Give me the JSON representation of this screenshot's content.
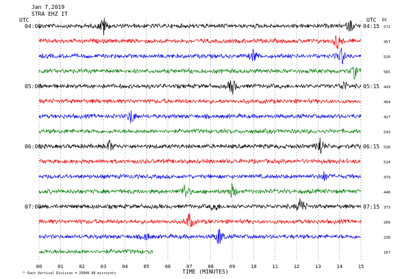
{
  "header": {
    "date": "Jan 7,2019",
    "station": "STRA EHZ IT"
  },
  "left_axis_label": "UTC",
  "right_axis_label": "UTC",
  "dc_label": "DC",
  "x_axis_title": "TIME (MINUTES)",
  "footnote": "Each Vertical Division = 25000.00 microcnts",
  "colors": {
    "black": "#000000",
    "red": "#ee0000",
    "blue": "#0000ee",
    "green": "#007a00"
  },
  "chart_data": {
    "type": "line",
    "title": "Jan 7,2019 STRA EHZ IT",
    "xlabel": "TIME (MINUTES)",
    "xlim": [
      0,
      15
    ],
    "x_ticks": [
      "00",
      "01",
      "02",
      "03",
      "04",
      "05",
      "06",
      "07",
      "08",
      "09",
      "10",
      "11",
      "12",
      "13",
      "14",
      "15"
    ],
    "grid": true,
    "lines": [
      {
        "left_time": "04:00",
        "right_time": "04:15",
        "dc": "572",
        "color": "black",
        "end_minute": 15,
        "events": [
          {
            "t": 3.0,
            "a": 1.0
          },
          {
            "t": 14.5,
            "a": 0.6
          }
        ]
      },
      {
        "left_time": "",
        "right_time": "",
        "dc": "457",
        "color": "red",
        "end_minute": 15,
        "events": [
          {
            "t": 13.9,
            "a": 0.8
          }
        ]
      },
      {
        "left_time": "",
        "right_time": "",
        "dc": "526",
        "color": "blue",
        "end_minute": 15,
        "events": [
          {
            "t": 10.0,
            "a": 0.7
          },
          {
            "t": 14.1,
            "a": 0.9
          }
        ]
      },
      {
        "left_time": "",
        "right_time": "",
        "dc": "585",
        "color": "green",
        "end_minute": 15,
        "events": [
          {
            "t": 14.7,
            "a": 0.6
          }
        ]
      },
      {
        "left_time": "05:00",
        "right_time": "05:15",
        "dc": "449",
        "color": "black",
        "end_minute": 15,
        "events": [
          {
            "t": 9.0,
            "a": 0.9
          },
          {
            "t": 14.2,
            "a": 0.5
          }
        ]
      },
      {
        "left_time": "",
        "right_time": "",
        "dc": "464",
        "color": "red",
        "end_minute": 15,
        "events": []
      },
      {
        "left_time": "",
        "right_time": "",
        "dc": "427",
        "color": "blue",
        "end_minute": 15,
        "events": [
          {
            "t": 4.3,
            "a": 0.8
          }
        ]
      },
      {
        "left_time": "",
        "right_time": "",
        "dc": "543",
        "color": "green",
        "end_minute": 15,
        "events": []
      },
      {
        "left_time": "06:00",
        "right_time": "06:15",
        "dc": "536",
        "color": "black",
        "end_minute": 15,
        "events": [
          {
            "t": 3.3,
            "a": 0.6
          },
          {
            "t": 13.1,
            "a": 1.0
          }
        ]
      },
      {
        "left_time": "",
        "right_time": "",
        "dc": "524",
        "color": "red",
        "end_minute": 15,
        "events": []
      },
      {
        "left_time": "",
        "right_time": "",
        "dc": "479",
        "color": "blue",
        "end_minute": 15,
        "events": [
          {
            "t": 13.3,
            "a": 0.5
          }
        ]
      },
      {
        "left_time": "",
        "right_time": "",
        "dc": "446",
        "color": "green",
        "end_minute": 15,
        "events": [
          {
            "t": 6.8,
            "a": 0.8
          },
          {
            "t": 9.0,
            "a": 0.7
          }
        ]
      },
      {
        "left_time": "07:00",
        "right_time": "07:15",
        "dc": "373",
        "color": "black",
        "end_minute": 15,
        "events": [
          {
            "t": 12.2,
            "a": 1.0
          },
          {
            "t": 8.2,
            "a": 0.5
          }
        ]
      },
      {
        "left_time": "",
        "right_time": "",
        "dc": "266",
        "color": "red",
        "end_minute": 15,
        "events": [
          {
            "t": 7.0,
            "a": 0.9
          }
        ]
      },
      {
        "left_time": "",
        "right_time": "",
        "dc": "238",
        "color": "blue",
        "end_minute": 15,
        "events": [
          {
            "t": 8.4,
            "a": 1.0
          },
          {
            "t": 5.0,
            "a": 0.4
          }
        ]
      },
      {
        "left_time": "",
        "right_time": "",
        "dc": "167",
        "color": "green",
        "end_minute": 5.3,
        "events": []
      }
    ]
  }
}
